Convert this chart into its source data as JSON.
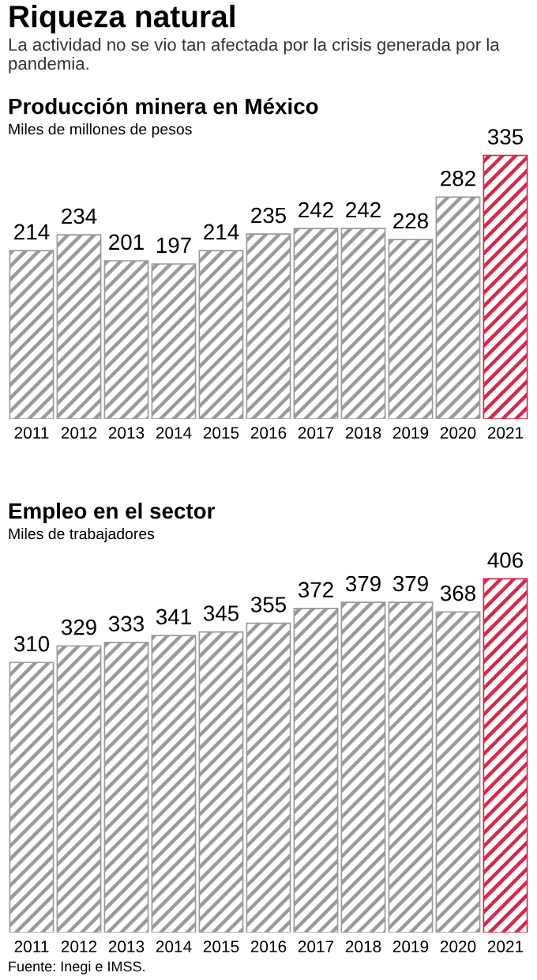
{
  "chart_data": [
    {
      "type": "other",
      "title": "Riqueza natural",
      "subtitle": "La actividad no se vio tan afectada por la crisis generada por la pandemia."
    },
    {
      "type": "bar",
      "title": "Producción minera en México",
      "subtitle": "Miles de millones de pesos",
      "categories": [
        "2011",
        "2012",
        "2013",
        "2014",
        "2015",
        "2016",
        "2017",
        "2018",
        "2019",
        "2020",
        "2021"
      ],
      "values": [
        214,
        234,
        201,
        197,
        214,
        235,
        242,
        242,
        228,
        282,
        335
      ],
      "colors": [
        "#9a9a9a",
        "#9a9a9a",
        "#9a9a9a",
        "#9a9a9a",
        "#9a9a9a",
        "#9a9a9a",
        "#9a9a9a",
        "#9a9a9a",
        "#9a9a9a",
        "#9a9a9a",
        "#d6284a"
      ],
      "data_labels": true,
      "tick_labels": "x"
    },
    {
      "type": "bar",
      "title": "Empleo en el sector",
      "subtitle": "Miles de trabajadores",
      "categories": [
        "2011",
        "2012",
        "2013",
        "2014",
        "2015",
        "2016",
        "2017",
        "2018",
        "2019",
        "2020",
        "2021"
      ],
      "values": [
        310,
        329,
        333,
        341,
        345,
        355,
        372,
        379,
        379,
        368,
        406
      ],
      "colors": [
        "#9a9a9a",
        "#9a9a9a",
        "#9a9a9a",
        "#9a9a9a",
        "#9a9a9a",
        "#9a9a9a",
        "#9a9a9a",
        "#9a9a9a",
        "#9a9a9a",
        "#9a9a9a",
        "#d6284a"
      ],
      "data_labels": true,
      "tick_labels": "x",
      "annotations": [
        "Fuente: Inegi e IMSS."
      ]
    }
  ]
}
